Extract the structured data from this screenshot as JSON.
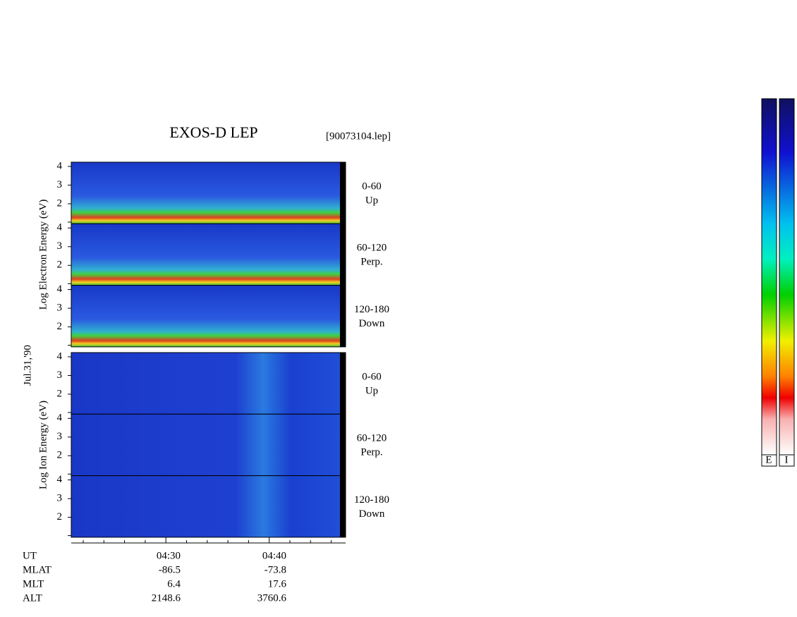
{
  "title": "EXOS-D LEP",
  "file": "[90073104.lep]",
  "date": "Jul.31,'90",
  "electron": {
    "ylabel": "Log Electron Energy (eV)",
    "panels": [
      {
        "range": "0-60",
        "dir": "Up"
      },
      {
        "range": "60-120",
        "dir": "Perp."
      },
      {
        "range": "120-180",
        "dir": "Down"
      }
    ]
  },
  "ion": {
    "ylabel": "Log Ion Energy (eV)",
    "panels": [
      {
        "range": "0-60",
        "dir": "Up"
      },
      {
        "range": "60-120",
        "dir": "Perp."
      },
      {
        "range": "120-180",
        "dir": "Down"
      }
    ]
  },
  "yticks": [
    4,
    3,
    2
  ],
  "time_axis": {
    "rows": [
      "UT",
      "MLAT",
      "MLT",
      "ALT"
    ],
    "columns": [
      [
        "04:30",
        "-86.5",
        "6.4",
        "2148.6"
      ],
      [
        "04:40",
        "-73.8",
        "17.6",
        "3760.6"
      ]
    ]
  },
  "colorbar_labels": [
    "E",
    "I"
  ]
}
